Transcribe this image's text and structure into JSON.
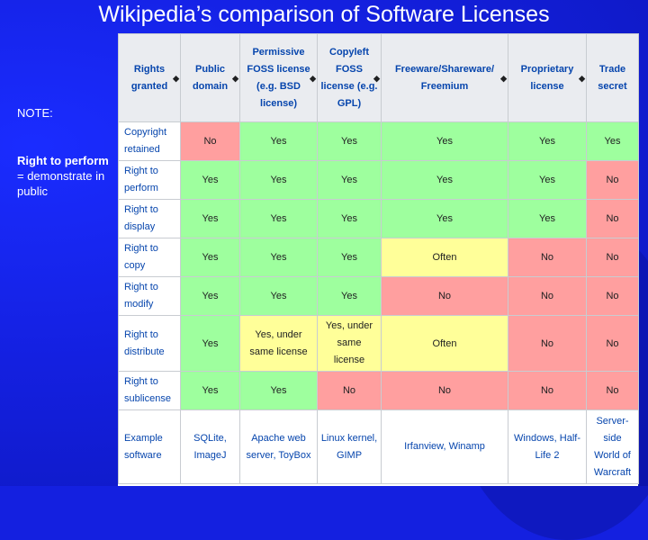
{
  "slide": {
    "title": "Wikipedia’s comparison of Software Licenses",
    "note_label": "NOTE:",
    "note_term": "Right to perform",
    "note_def": " = demonstrate in public"
  },
  "colors": {
    "yes": "#9eff9e",
    "no": "#ff9f9f",
    "often": "#ffff99",
    "link": "#0645ad",
    "header_bg": "#eaecf0",
    "slide_bg": "#1420e0"
  },
  "table": {
    "headers": [
      {
        "label": "Rights granted",
        "sortable": true
      },
      {
        "label": "Public domain",
        "sortable": true
      },
      {
        "label": "Permissive FOSS license (e.g. BSD license)",
        "sortable": true
      },
      {
        "label": "Copyleft FOSS license (e.g. GPL)",
        "sortable": true
      },
      {
        "label": "Freeware/Shareware/ Freemium",
        "sortable": true
      },
      {
        "label": "Proprietary license",
        "sortable": true
      },
      {
        "label": "Trade secret",
        "sortable": false
      }
    ],
    "sort_glyph": "◆",
    "rows": [
      {
        "right": "Copyright retained",
        "cells": [
          "No",
          "Yes",
          "Yes",
          "Yes",
          "Yes",
          "Yes"
        ]
      },
      {
        "right": "Right to perform",
        "cells": [
          "Yes",
          "Yes",
          "Yes",
          "Yes",
          "Yes",
          "No"
        ]
      },
      {
        "right": "Right to display",
        "cells": [
          "Yes",
          "Yes",
          "Yes",
          "Yes",
          "Yes",
          "No"
        ]
      },
      {
        "right": "Right to copy",
        "cells": [
          "Yes",
          "Yes",
          "Yes",
          "Often",
          "No",
          "No"
        ]
      },
      {
        "right": "Right to modify",
        "cells": [
          "Yes",
          "Yes",
          "Yes",
          "No",
          "No",
          "No"
        ]
      },
      {
        "right": "Right to distribute",
        "cells": [
          "Yes",
          "Yes, under same license",
          "Yes, under same license",
          "Often",
          "No",
          "No"
        ]
      },
      {
        "right": "Right to sublicense",
        "cells": [
          "Yes",
          "Yes",
          "No",
          "No",
          "No",
          "No"
        ]
      }
    ],
    "example_row": {
      "label": "Example software",
      "cells": [
        "SQLite, ImageJ",
        "Apache web server, ToyBox",
        "Linux kernel, GIMP",
        "Irfanview, Winamp",
        "Windows, Half-Life 2",
        "Server-side World of Warcraft"
      ]
    }
  }
}
